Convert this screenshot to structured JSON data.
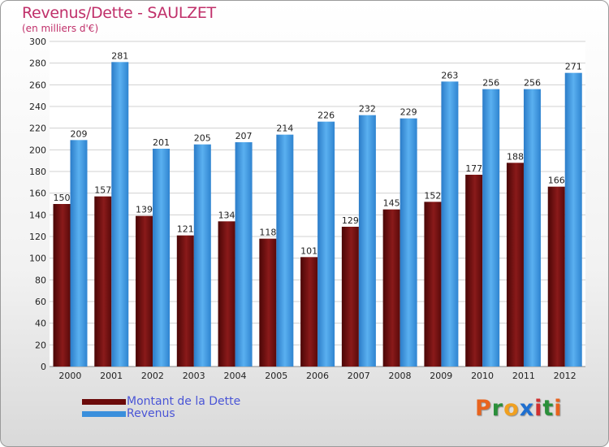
{
  "header": {
    "title": "Revenus/Dette - SAULZET",
    "subtitle": "(en milliers d'€)"
  },
  "legend": {
    "items": [
      {
        "label": "Montant de la Dette",
        "color": "#6b0a0a"
      },
      {
        "label": "Revenus",
        "color": "#3a8fdc"
      }
    ]
  },
  "logo": {
    "letters": [
      "P",
      "r",
      "o",
      "x",
      "i",
      "t",
      "i"
    ],
    "colors": [
      "#e8641e",
      "#2a8f3a",
      "#f0a020",
      "#1e6fd0",
      "#d03030",
      "#2a8f3a",
      "#e8641e"
    ]
  },
  "chart_data": {
    "type": "bar",
    "categories": [
      "2000",
      "2001",
      "2002",
      "2003",
      "2004",
      "2005",
      "2006",
      "2007",
      "2008",
      "2009",
      "2010",
      "2011",
      "2012"
    ],
    "series": [
      {
        "name": "Montant de la Dette",
        "color": "#7a1414",
        "values": [
          150,
          157,
          139,
          121,
          134,
          118,
          101,
          129,
          145,
          152,
          177,
          188,
          166
        ]
      },
      {
        "name": "Revenus",
        "color": "#3a8fdc",
        "values": [
          209,
          281,
          201,
          205,
          207,
          214,
          226,
          232,
          229,
          263,
          256,
          256,
          271
        ]
      }
    ],
    "ylim": [
      0,
      300
    ],
    "yticks": [
      0,
      20,
      40,
      60,
      80,
      100,
      120,
      140,
      160,
      180,
      200,
      220,
      240,
      260,
      280,
      300
    ],
    "grid": true,
    "legend_position": "bottom-left"
  }
}
